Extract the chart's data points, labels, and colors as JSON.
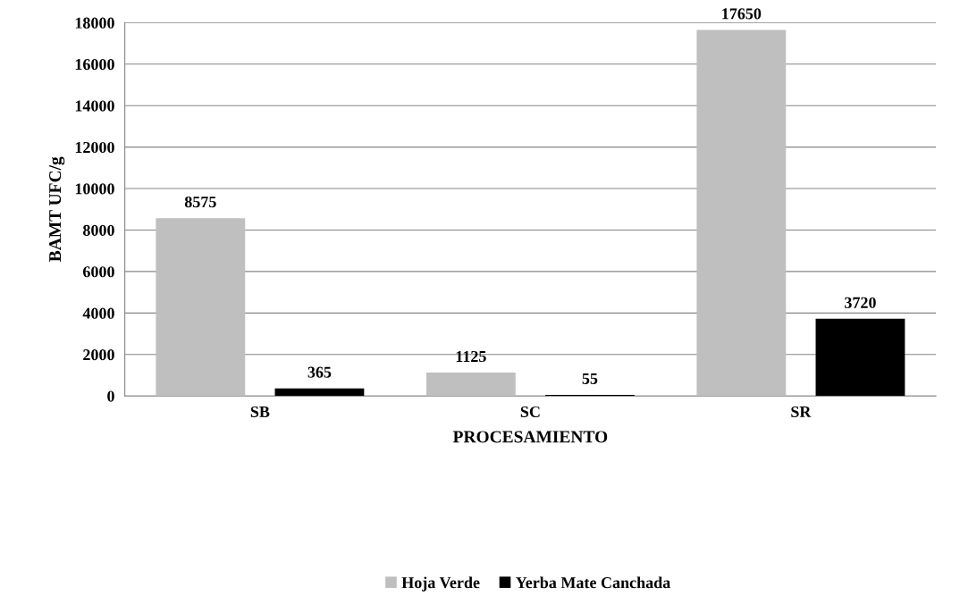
{
  "chart_data": {
    "type": "bar",
    "xlabel": "PROCESAMIENTO",
    "ylabel": "BAMT UFC/g",
    "categories": [
      "SB",
      "SC",
      "SR"
    ],
    "series": [
      {
        "name": "Hoja Verde",
        "color": "#bfbfbf",
        "values": [
          8575,
          1125,
          17650
        ]
      },
      {
        "name": "Yerba Mate Canchada",
        "color": "#000000",
        "values": [
          365,
          55,
          3720
        ]
      }
    ],
    "ylim": [
      0,
      18000
    ],
    "yticks": [
      0,
      2000,
      4000,
      6000,
      8000,
      10000,
      12000,
      14000,
      16000,
      18000
    ],
    "grid": "y",
    "legend": "bottom",
    "data_labels": true
  }
}
